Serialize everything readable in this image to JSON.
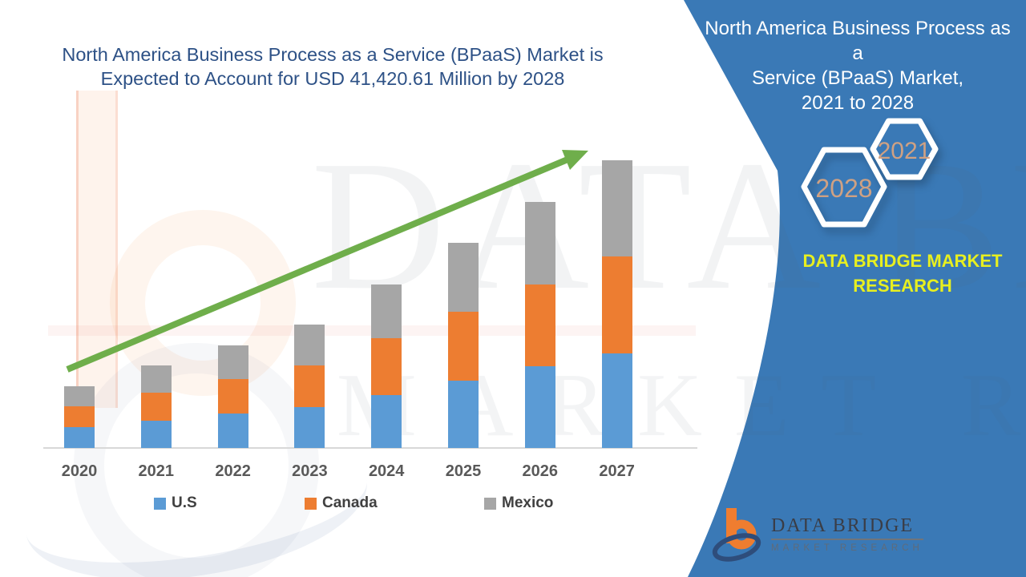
{
  "main_title": {
    "line1": "North America Business Process as a Service (BPaaS) Market is",
    "line2": "Expected to Account for USD 41,420.61 Million by 2028",
    "color": "#2d5186"
  },
  "chart_data": {
    "type": "bar",
    "stacked": true,
    "title": "North America Business Process as a Service (BPaaS) Market is Expected to Account for USD 41,420.61 Million by 2028",
    "categories": [
      "2020",
      "2021",
      "2022",
      "2023",
      "2024",
      "2025",
      "2026",
      "2027"
    ],
    "series": [
      {
        "name": "U.S",
        "color": "#5b9bd5",
        "values": [
          26,
          34,
          43,
          51,
          66,
          84,
          102,
          118
        ]
      },
      {
        "name": "Canada",
        "color": "#ed7d31",
        "values": [
          26,
          35,
          43,
          52,
          71,
          86,
          102,
          121
        ]
      },
      {
        "name": "Mexico",
        "color": "#a6a6a6",
        "values": [
          25,
          34,
          42,
          51,
          67,
          86,
          103,
          120
        ]
      }
    ],
    "value_unit": "relative bar-segment height (no numeric y-axis shown in image)",
    "xlabel": "",
    "ylabel": "",
    "y_axis_visible": false,
    "grid": false,
    "legend_position": "bottom",
    "trend_arrow": {
      "present": true,
      "color": "#6fae4b",
      "direction": "up-right"
    }
  },
  "panel": {
    "bg_color": "#3a79b6",
    "title": "North America Business Process as a\nService (BPaaS) Market,\n2021 to 2028",
    "hexagons": {
      "big_label": "2028",
      "small_label": "2021",
      "border_color": "#ffffff",
      "label_color": "#cfa183"
    },
    "brand_text": "DATA BRIDGE MARKET\nRESEARCH",
    "brand_color": "#e7ef20"
  },
  "footer_logo": {
    "name": "DATA BRIDGE",
    "tagline": "MARKET RESEARCH",
    "icon_orange": "#ef7d30",
    "icon_navy": "#2e4d7b"
  },
  "watermark": {
    "line1": "DATA BRIDGE",
    "line2": "MARKET RESEARCH"
  }
}
